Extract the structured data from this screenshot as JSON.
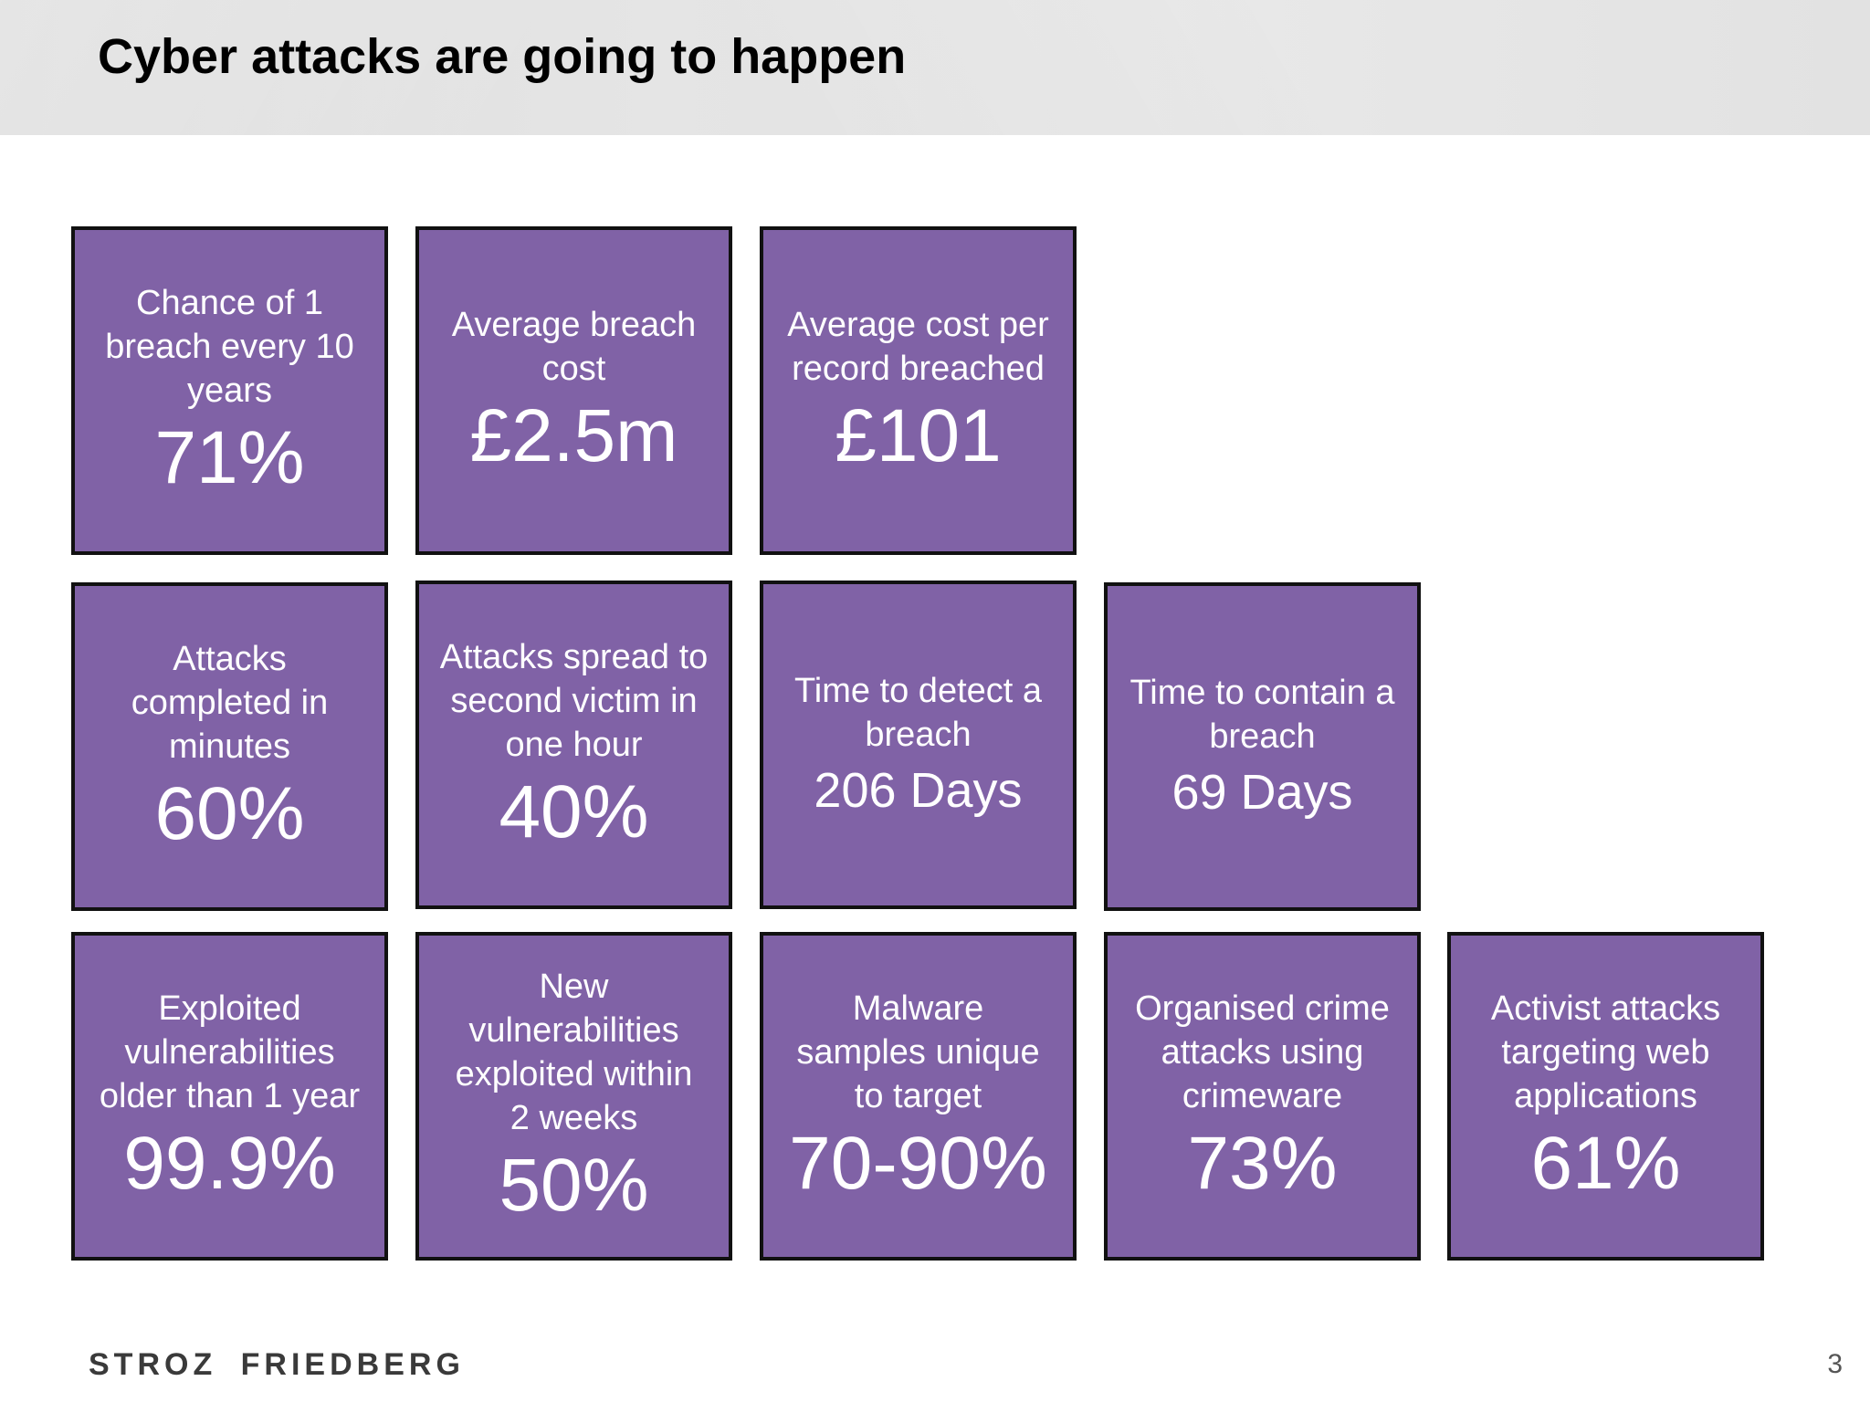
{
  "slide": {
    "title": "Cyber attacks are going to happen",
    "page_number": "3",
    "logo_text": "STROZ FRIEDBERG",
    "tile_color": "#8062a6"
  },
  "stats": {
    "row1": [
      {
        "label": "Chance of 1 breach every 10 years",
        "value": "71%"
      },
      {
        "label": "Average breach cost",
        "value": "£2.5m"
      },
      {
        "label": "Average cost per record breached",
        "value": "£101"
      }
    ],
    "row2": [
      {
        "label": "Attacks completed in minutes",
        "value": "60%"
      },
      {
        "label": "Attacks spread to second victim in one hour",
        "value": "40%"
      },
      {
        "label": "Time to detect a breach",
        "value": "206 Days"
      },
      {
        "label": "Time to contain a breach",
        "value": "69 Days"
      }
    ],
    "row3": [
      {
        "label": "Exploited vulnerabilities older than 1 year",
        "value": "99.9%"
      },
      {
        "label": "New vulnerabilities exploited within 2 weeks",
        "value": "50%"
      },
      {
        "label": "Malware samples unique to target",
        "value": "70-90%"
      },
      {
        "label": "Organised crime attacks using crimeware",
        "value": "73%"
      },
      {
        "label": "Activist attacks targeting web applications",
        "value": "61%"
      }
    ]
  }
}
